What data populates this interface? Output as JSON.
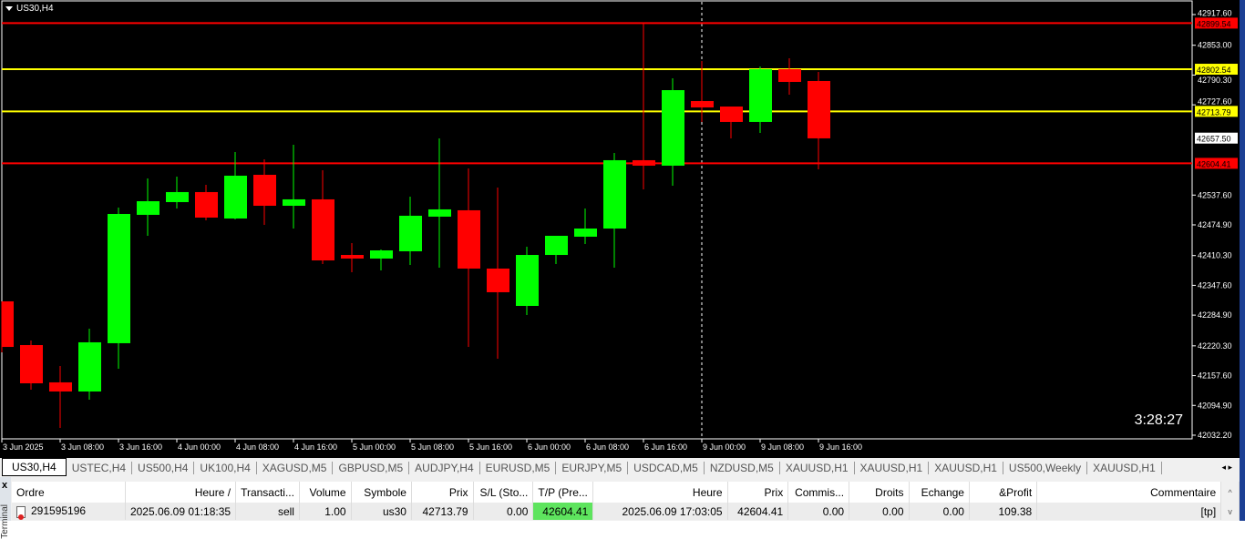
{
  "chart": {
    "title": "US30,H4",
    "clock": "3:28:27",
    "colors": {
      "bull": "#00ff00",
      "bear": "#ff0000",
      "background": "#000000",
      "axis": "#ffffff"
    },
    "current_price": {
      "value": 42657.5,
      "label": "42657.50",
      "color": "#ffffff"
    },
    "hlines": [
      {
        "price": 42899.54,
        "label": "42899.54",
        "color": "#ff0000"
      },
      {
        "price": 42802.54,
        "label": "42802.54",
        "color": "#ffff00"
      },
      {
        "price": 42713.79,
        "label": "42713.79",
        "color": "#ffff00"
      },
      {
        "price": 42604.41,
        "label": "42604.41",
        "color": "#ff0000"
      }
    ],
    "period_separator_index": 24
  },
  "chart_data": {
    "type": "candlestick",
    "ylim": [
      42024.5,
      42944.4
    ],
    "grid": false,
    "y_ticks": [
      "42917.60",
      "42853.00",
      "42790.30",
      "42727.60",
      "42537.60",
      "42474.90",
      "42410.30",
      "42347.60",
      "42284.90",
      "42220.30",
      "42157.60",
      "42094.90",
      "42032.20"
    ],
    "x_ticks": [
      "3 Jun 2025",
      "3 Jun 08:00",
      "3 Jun 16:00",
      "4 Jun 00:00",
      "4 Jun 08:00",
      "4 Jun 16:00",
      "5 Jun 00:00",
      "5 Jun 08:00",
      "5 Jun 16:00",
      "6 Jun 00:00",
      "6 Jun 08:00",
      "6 Jun 16:00",
      "9 Jun 00:00",
      "9 Jun 08:00",
      "9 Jun 16:00"
    ],
    "ohlc": [
      [
        42313.9,
        42313.9,
        42206.6,
        42218.0
      ],
      [
        42221.9,
        42231.5,
        42128.0,
        42141.4
      ],
      [
        42143.4,
        42177.8,
        42047.5,
        42124.2
      ],
      [
        42124.2,
        42256.4,
        42106.9,
        42227.7
      ],
      [
        42225.8,
        42511.3,
        42172.1,
        42497.9
      ],
      [
        42496.0,
        42572.6,
        42451.9,
        42524.7
      ],
      [
        42522.8,
        42576.5,
        42509.4,
        42543.9
      ],
      [
        42543.9,
        42559.2,
        42484.5,
        42490.2
      ],
      [
        42488.3,
        42628.2,
        42486.4,
        42578.4
      ],
      [
        42580.3,
        42612.9,
        42474.9,
        42515.1
      ],
      [
        42515.1,
        42643.5,
        42467.2,
        42528.6
      ],
      [
        42528.6,
        42589.9,
        42392.5,
        42400.1
      ],
      [
        42411.6,
        42436.6,
        42375.2,
        42404.0
      ],
      [
        42404.0,
        42423.1,
        42379.1,
        42421.2
      ],
      [
        42419.3,
        42534.3,
        42390.6,
        42494.1
      ],
      [
        42492.2,
        42657.0,
        42384.8,
        42507.5
      ],
      [
        42505.6,
        42593.7,
        42218.0,
        42382.9
      ],
      [
        42382.9,
        42553.5,
        42193.2,
        42333.1
      ],
      [
        42304.3,
        42428.9,
        42285.2,
        42411.6
      ],
      [
        42411.6,
        42451.9,
        42392.5,
        42451.9
      ],
      [
        42450.0,
        42509.4,
        42434.6,
        42467.2
      ],
      [
        42467.2,
        42626.3,
        42384.8,
        42611.0
      ],
      [
        42611.0,
        42900.4,
        42549.6,
        42599.5
      ],
      [
        42599.5,
        42783.4,
        42557.3,
        42758.5
      ],
      [
        42735.5,
        42819.9,
        42691.5,
        42722.1
      ],
      [
        42724.0,
        42724.0,
        42657.0,
        42691.5
      ],
      [
        42691.5,
        42808.4,
        42668.4,
        42802.6
      ],
      [
        42802.6,
        42825.6,
        42749.0,
        42775.8
      ],
      [
        42777.7,
        42796.9,
        42591.8,
        42657.0
      ]
    ]
  },
  "tabs": [
    "US30,H4",
    "USTEC,H4",
    "US500,H4",
    "UK100,H4",
    "XAGUSD,M5",
    "GBPUSD,M5",
    "AUDJPY,H4",
    "EURUSD,M5",
    "EURJPY,M5",
    "USDCAD,M5",
    "NZDUSD,M5",
    "XAUUSD,H1",
    "XAUUSD,H1",
    "XAUUSD,H1",
    "US500,Weekly",
    "XAUUSD,H1"
  ],
  "tab_arrows": "◂ ▸",
  "terminal": {
    "close": "x",
    "side_label": "Terminal",
    "columns": [
      "Ordre",
      "Heure  /",
      "Transacti...",
      "Volume",
      "Symbole",
      "Prix",
      "S/L (Sto...",
      "T/P (Pre...",
      "Heure",
      "Prix",
      "Commis...",
      "Droits",
      "Echange",
      "&Profit",
      "Commentaire"
    ],
    "rows": [
      [
        "291595196",
        "2025.06.09 01:18:35",
        "sell",
        "1.00",
        "us30",
        "42713.79",
        "0.00",
        "42604.41",
        "2025.06.09 17:03:05",
        "42604.41",
        "0.00",
        "0.00",
        "0.00",
        "109.38",
        "[tp]"
      ]
    ],
    "tp_highlight": "#5ee45e"
  }
}
